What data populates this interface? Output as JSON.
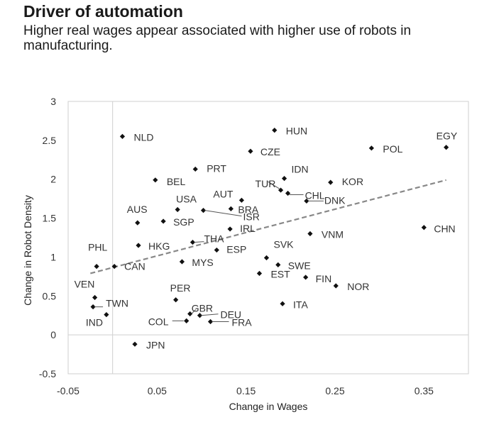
{
  "header": {
    "title": "Driver of automation",
    "subtitle": "Higher real wages appear associated with higher use of robots in manufacturing."
  },
  "chart_data": {
    "type": "scatter",
    "title": "Driver of automation",
    "subtitle": "Higher real wages appear associated with higher use of robots in manufacturing.",
    "xlabel": "Change in Wages",
    "ylabel": "Change in Robot Density",
    "xlim": [
      -0.05,
      0.4
    ],
    "ylim": [
      -0.5,
      3
    ],
    "xticks": [
      -0.05,
      0.05,
      0.15,
      0.25,
      0.35
    ],
    "xtick_labels": [
      "-0.05",
      "0.05",
      "0.15",
      "0.25",
      "0.35"
    ],
    "yticks": [
      -0.5,
      0,
      0.5,
      1,
      1.5,
      2,
      2.5,
      3
    ],
    "ytick_labels": [
      "-0.5",
      "0",
      "0.5",
      "1",
      "1.5",
      "2",
      "2.5",
      "3"
    ],
    "grid": false,
    "reference_lines": {
      "x": 0,
      "y": 0
    },
    "trendline": {
      "style": "dashed",
      "color": "#888888",
      "x": [
        -0.025,
        0.375
      ],
      "y": [
        0.79,
        1.99
      ]
    },
    "marker_color": "#111111",
    "points": [
      {
        "label": "NLD",
        "x": 0.011,
        "y": 2.55
      },
      {
        "label": "HUN",
        "x": 0.182,
        "y": 2.63
      },
      {
        "label": "EGY",
        "x": 0.375,
        "y": 2.41
      },
      {
        "label": "POL",
        "x": 0.291,
        "y": 2.4
      },
      {
        "label": "CZE",
        "x": 0.155,
        "y": 2.36
      },
      {
        "label": "PRT",
        "x": 0.093,
        "y": 2.13
      },
      {
        "label": "IDN",
        "x": 0.193,
        "y": 2.01
      },
      {
        "label": "BEL",
        "x": 0.048,
        "y": 1.99
      },
      {
        "label": "KOR",
        "x": 0.245,
        "y": 1.96
      },
      {
        "label": "TUR",
        "x": 0.189,
        "y": 1.86
      },
      {
        "label": "CHL",
        "x": 0.197,
        "y": 1.82
      },
      {
        "label": "AUT",
        "x": 0.145,
        "y": 1.73
      },
      {
        "label": "BRA",
        "x": 0.133,
        "y": 1.62
      },
      {
        "label": "DNK",
        "x": 0.218,
        "y": 1.72
      },
      {
        "label": "USA",
        "x": 0.073,
        "y": 1.61
      },
      {
        "label": "ISR",
        "x": 0.102,
        "y": 1.6
      },
      {
        "label": "AUS",
        "x": 0.028,
        "y": 1.44
      },
      {
        "label": "SGP",
        "x": 0.057,
        "y": 1.46
      },
      {
        "label": "CHN",
        "x": 0.35,
        "y": 1.38
      },
      {
        "label": "IRL",
        "x": 0.132,
        "y": 1.36
      },
      {
        "label": "VNM",
        "x": 0.222,
        "y": 1.3
      },
      {
        "label": "THA",
        "x": 0.09,
        "y": 1.19
      },
      {
        "label": "HKG",
        "x": 0.029,
        "y": 1.15
      },
      {
        "label": "ESP",
        "x": 0.117,
        "y": 1.09
      },
      {
        "label": "SVK",
        "x": 0.173,
        "y": 0.99
      },
      {
        "label": "MYS",
        "x": 0.078,
        "y": 0.94
      },
      {
        "label": "SWE",
        "x": 0.186,
        "y": 0.9
      },
      {
        "label": "PHL",
        "x": -0.018,
        "y": 0.88
      },
      {
        "label": "CAN",
        "x": 0.002,
        "y": 0.88
      },
      {
        "label": "EST",
        "x": 0.165,
        "y": 0.79
      },
      {
        "label": "FIN",
        "x": 0.217,
        "y": 0.74
      },
      {
        "label": "NOR",
        "x": 0.251,
        "y": 0.63
      },
      {
        "label": "VEN",
        "x": -0.02,
        "y": 0.48
      },
      {
        "label": "PER",
        "x": 0.071,
        "y": 0.45
      },
      {
        "label": "ITA",
        "x": 0.191,
        "y": 0.4
      },
      {
        "label": "TWN",
        "x": -0.022,
        "y": 0.36
      },
      {
        "label": "GBR",
        "x": 0.087,
        "y": 0.27
      },
      {
        "label": "DEU",
        "x": 0.098,
        "y": 0.25
      },
      {
        "label": "IND",
        "x": -0.007,
        "y": 0.26
      },
      {
        "label": "COL",
        "x": 0.083,
        "y": 0.18
      },
      {
        "label": "FRA",
        "x": 0.11,
        "y": 0.17
      },
      {
        "label": "JPN",
        "x": 0.025,
        "y": -0.12
      }
    ]
  }
}
